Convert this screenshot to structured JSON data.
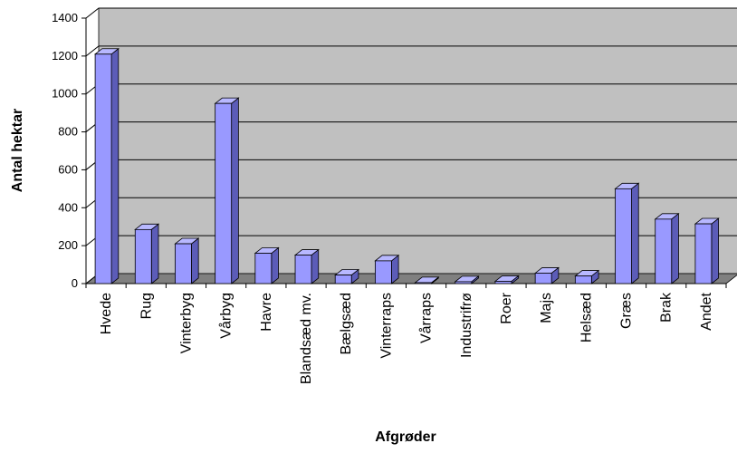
{
  "chart_data": {
    "type": "bar",
    "categories": [
      "Hvede",
      "Rug",
      "Vinterbyg",
      "Vårbyg",
      "Havre",
      "Blandsæd mv.",
      "Bælgsæd",
      "Vinterraps",
      "Vårraps",
      "Industrifrø",
      "Roer",
      "Majs",
      "Helsæd",
      "Græs",
      "Brak",
      "Andet"
    ],
    "values": [
      1210,
      285,
      210,
      950,
      160,
      150,
      45,
      120,
      5,
      10,
      12,
      55,
      40,
      500,
      340,
      315
    ],
    "xlabel": "Afgrøder",
    "ylabel": "Antal hektar",
    "ylim": [
      0,
      1400
    ],
    "yticks": [
      0,
      200,
      400,
      600,
      800,
      1000,
      1200,
      1400
    ],
    "grid": true,
    "style": "3d-column",
    "colors": {
      "bar_front": "#9999ff",
      "bar_side": "#5c5cb8",
      "bar_top": "#b8b8ff",
      "wall": "#c0c0c0",
      "floor": "#808080",
      "gridline": "#000000"
    }
  }
}
